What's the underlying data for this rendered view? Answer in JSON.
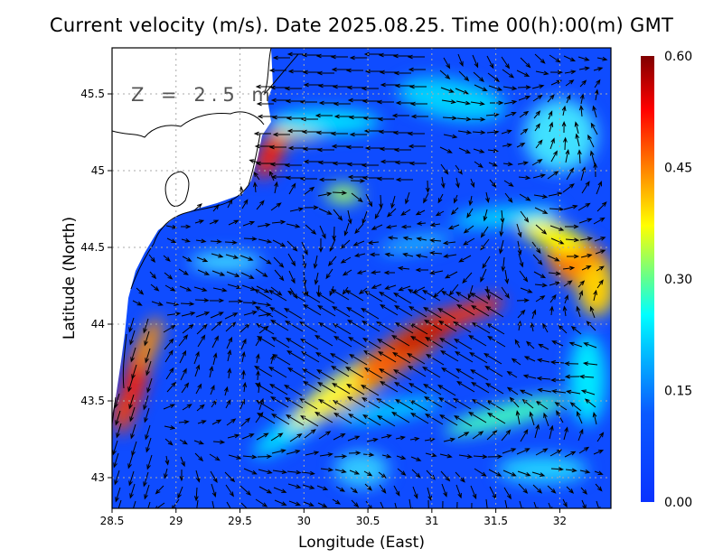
{
  "title": "Current velocity (m/s). Date 2025.08.25. Time 00(h):00(m) GMT",
  "depth_label": "Z = 2.5 m",
  "chart_data": {
    "type": "heatmap",
    "subtype": "vector field over color-shaded speed",
    "xlabel": "Longitude (East)",
    "ylabel": "Latitude (North)",
    "xlim": [
      28.5,
      32.4
    ],
    "ylim": [
      42.8,
      45.8
    ],
    "x_ticks": [
      "28.5",
      "29",
      "29.5",
      "30",
      "30.5",
      "31",
      "31.5",
      "32"
    ],
    "x_tick_values": [
      28.5,
      29,
      29.5,
      30,
      30.5,
      31,
      31.5,
      32
    ],
    "y_ticks": [
      "43",
      "43.5",
      "44",
      "44.5",
      "45",
      "45.5"
    ],
    "y_tick_values": [
      43,
      43.5,
      44,
      44.5,
      45,
      45.5
    ],
    "grid": true,
    "colorbar": {
      "colormap": "jet",
      "range": [
        0.0,
        0.6
      ],
      "tick_labels": [
        "0.00",
        "0.15",
        "0.30",
        "0.45",
        "0.60"
      ],
      "tick_values": [
        0.0,
        0.15,
        0.3,
        0.45,
        0.6
      ],
      "placement": "right"
    },
    "land_color": "#ffffff",
    "vector_color": "#000000"
  }
}
